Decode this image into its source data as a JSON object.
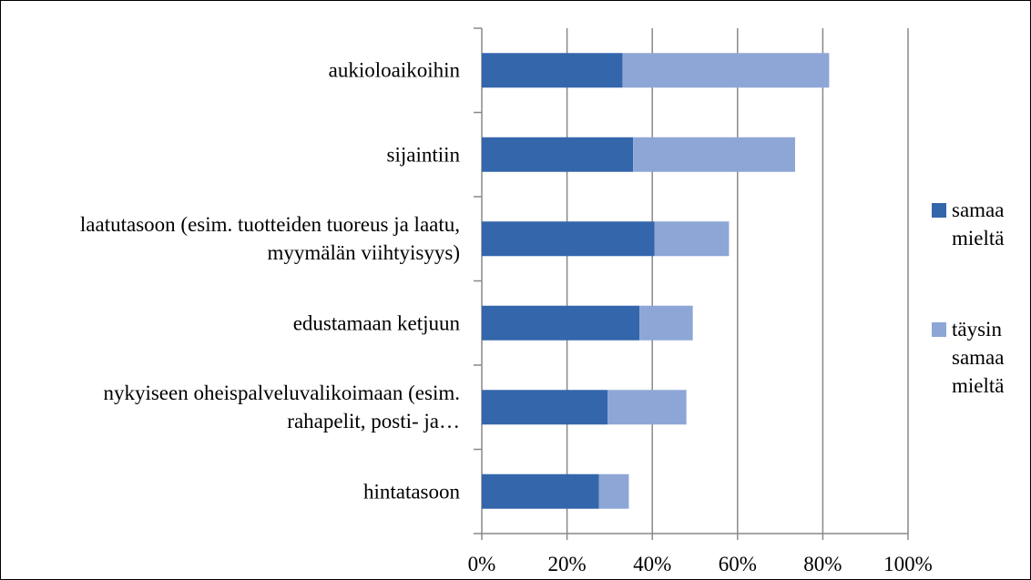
{
  "chart_data": {
    "type": "stacked-barh",
    "categories": [
      "aukioloaikoihin",
      "sijaintiin",
      "laatutasoon (esim. tuotteiden tuoreus ja laatu, myymälän viihtyisyys)",
      "edustamaan ketjuun",
      "nykyiseen oheispalveluvalikoimaan (esim. rahapelit, posti- ja…",
      "hintatasoon"
    ],
    "series": [
      {
        "name": "samaa mieltä",
        "color": "#3466ab",
        "values": [
          33,
          35.5,
          40.5,
          37,
          29.5,
          27.5
        ]
      },
      {
        "name": "täysin samaa mieltä",
        "color": "#8da6d6",
        "values": [
          48.5,
          38,
          17.5,
          12.5,
          18.5,
          7
        ]
      }
    ],
    "xlim": [
      0,
      100
    ],
    "xticks": [
      {
        "value": 0,
        "label": "0%"
      },
      {
        "value": 20,
        "label": "20%"
      },
      {
        "value": 40,
        "label": "40%"
      },
      {
        "value": 60,
        "label": "60%"
      },
      {
        "value": 80,
        "label": "80%"
      },
      {
        "value": 100,
        "label": "100%"
      }
    ],
    "grid": true,
    "legend": "right"
  }
}
